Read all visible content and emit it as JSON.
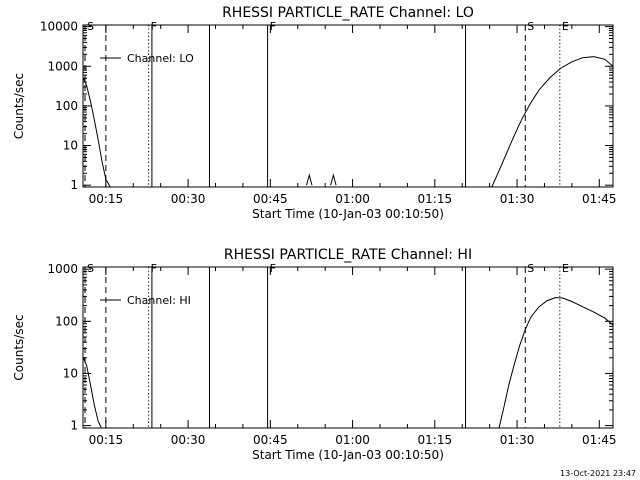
{
  "chart_data": [
    {
      "type": "line",
      "title": "RHESSI PARTICLE_RATE Channel: LO",
      "xlabel": "Start Time (10-Jan-03 00:10:50)",
      "ylabel": "Counts/sec",
      "yscale": "log",
      "xlim": [
        10.83,
        107.5
      ],
      "ylim": [
        0.9,
        11000
      ],
      "x_ticks": [
        15,
        30,
        45,
        60,
        75,
        90,
        105
      ],
      "x_tick_labels": [
        "00:15",
        "00:30",
        "00:45",
        "01:00",
        "01:15",
        "01:30",
        "01:45"
      ],
      "y_ticks": [
        1,
        10,
        100,
        1000,
        10000
      ],
      "y_tick_labels": [
        "1",
        "10",
        "100",
        "1000",
        "10000"
      ],
      "legend": {
        "label": "Channel: LO",
        "position": "top-left"
      },
      "markers": [
        {
          "label": "S",
          "time": 11.2,
          "style": "dashed"
        },
        {
          "label": "F",
          "time": 22.8,
          "style": "dotted"
        },
        {
          "label": "F",
          "time": 44.5,
          "style": "solid"
        },
        {
          "label": "S",
          "time": 91.5,
          "style": "dashed"
        },
        {
          "label": "E",
          "time": 97.8,
          "style": "dotted"
        }
      ],
      "vlines": [
        {
          "time": 11.2,
          "style": "dashed"
        },
        {
          "time": 15.0,
          "style": "dashed"
        },
        {
          "time": 22.8,
          "style": "dotted"
        },
        {
          "time": 23.4,
          "style": "solid"
        },
        {
          "time": 33.9,
          "style": "solid"
        },
        {
          "time": 44.5,
          "style": "solid"
        },
        {
          "time": 80.6,
          "style": "solid"
        },
        {
          "time": 91.5,
          "style": "dashed"
        },
        {
          "time": 97.8,
          "style": "dotted"
        },
        {
          "time": 108.0,
          "style": "dashdot"
        }
      ],
      "series": [
        {
          "name": "LO",
          "x": [
            10.9,
            11.5,
            12.2,
            12.9,
            13.6,
            14.3,
            15.0,
            15.8
          ],
          "y": [
            500,
            320,
            130,
            45,
            14,
            4,
            1.4,
            0.9
          ]
        },
        {
          "name": "LO",
          "x": [
            51.6,
            52.1,
            52.6
          ],
          "y": [
            1,
            1.8,
            1
          ]
        },
        {
          "name": "LO",
          "x": [
            56.0,
            56.5,
            57.0
          ],
          "y": [
            1,
            1.8,
            1
          ]
        },
        {
          "name": "LO",
          "x": [
            85.4,
            86.5,
            88.0,
            89.5,
            91.0,
            92.5,
            94.0,
            96.0,
            98.0,
            100.0,
            102.0,
            104.0,
            106.0,
            107.5
          ],
          "y": [
            0.9,
            2,
            6,
            18,
            50,
            120,
            250,
            520,
            900,
            1300,
            1650,
            1750,
            1500,
            1000
          ]
        }
      ]
    },
    {
      "type": "line",
      "title": "RHESSI PARTICLE_RATE Channel: HI",
      "xlabel": "Start Time (10-Jan-03 00:10:50)",
      "ylabel": "Counts/sec",
      "yscale": "log",
      "xlim": [
        10.83,
        107.5
      ],
      "ylim": [
        0.9,
        1100
      ],
      "x_ticks": [
        15,
        30,
        45,
        60,
        75,
        90,
        105
      ],
      "x_tick_labels": [
        "00:15",
        "00:30",
        "00:45",
        "01:00",
        "01:15",
        "01:30",
        "01:45"
      ],
      "y_ticks": [
        1,
        10,
        100,
        1000
      ],
      "y_tick_labels": [
        "1",
        "10",
        "100",
        "1000"
      ],
      "legend": {
        "label": "Channel: HI",
        "position": "top-left"
      },
      "markers": [
        {
          "label": "S",
          "time": 11.2,
          "style": "dashed"
        },
        {
          "label": "F",
          "time": 22.8,
          "style": "dotted"
        },
        {
          "label": "F",
          "time": 44.5,
          "style": "solid"
        },
        {
          "label": "S",
          "time": 91.5,
          "style": "dashed"
        },
        {
          "label": "E",
          "time": 97.8,
          "style": "dotted"
        }
      ],
      "vlines": [
        {
          "time": 11.2,
          "style": "dashed"
        },
        {
          "time": 15.0,
          "style": "dashed"
        },
        {
          "time": 22.8,
          "style": "dotted"
        },
        {
          "time": 23.4,
          "style": "solid"
        },
        {
          "time": 33.9,
          "style": "solid"
        },
        {
          "time": 44.5,
          "style": "solid"
        },
        {
          "time": 80.6,
          "style": "solid"
        },
        {
          "time": 91.5,
          "style": "dashed"
        },
        {
          "time": 97.8,
          "style": "dotted"
        },
        {
          "time": 108.0,
          "style": "dashdot"
        }
      ],
      "series": [
        {
          "name": "HI",
          "x": [
            10.9,
            11.5,
            12.2,
            12.9,
            13.6,
            14.2
          ],
          "y": [
            20,
            14,
            6,
            2.5,
            1.2,
            0.9
          ]
        },
        {
          "name": "HI",
          "x": [
            86.7,
            87.5,
            88.5,
            89.5,
            90.5,
            91.5,
            92.5,
            94.0,
            95.5,
            97.0,
            98.3,
            100.0,
            102.0,
            104.0,
            106.0,
            107.5
          ],
          "y": [
            0.9,
            2,
            6,
            15,
            35,
            70,
            120,
            190,
            250,
            285,
            280,
            240,
            190,
            150,
            115,
            85
          ]
        }
      ]
    }
  ],
  "footer": {
    "timestamp": "13-Oct-2021 23:47"
  }
}
